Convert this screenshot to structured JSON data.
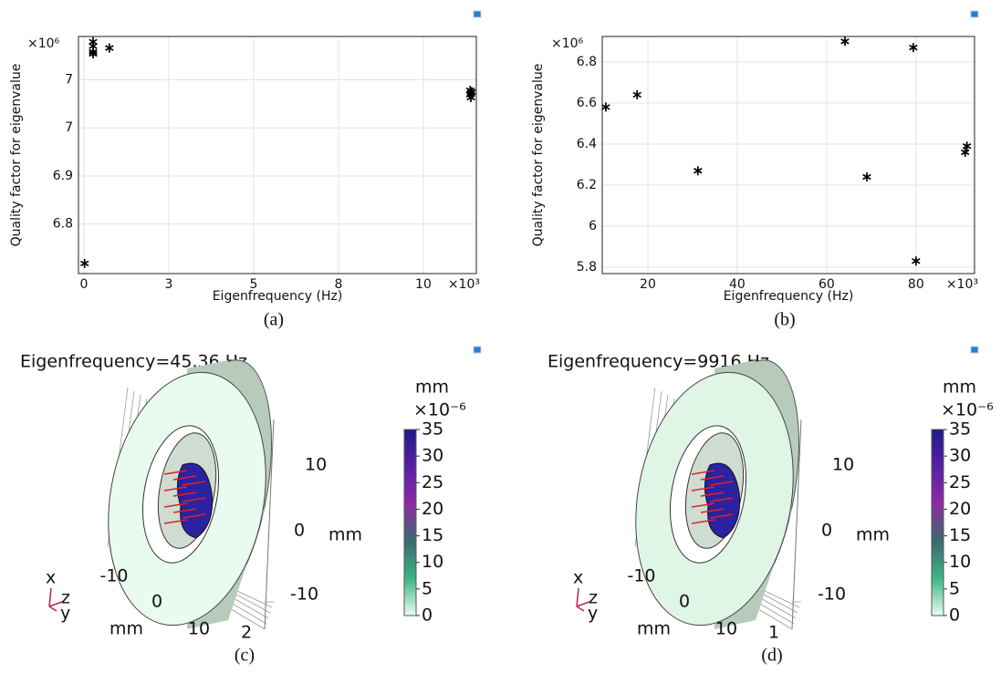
{
  "chart_data": [
    {
      "type": "scatter",
      "caption": "(a)",
      "xlabel": "Eigenfrequency (Hz)",
      "ylabel": "Quality factor for eigenvalue",
      "x_scale_label": "×10³",
      "y_scale_label": "×10⁶",
      "color": "#000000",
      "grid": true,
      "xlim": [
        -0.16,
        11.56
      ],
      "xticks": [
        0,
        {
          "value": 2.5,
          "label": "3"
        },
        5,
        {
          "value": 7.5,
          "label": "8"
        },
        10
      ],
      "ylim": [
        6.697,
        7.19
      ],
      "yticks": [
        6.8,
        6.9,
        7,
        {
          "value": 7.1,
          "label": "7"
        }
      ],
      "x": [
        0.02,
        0.27,
        0.27,
        0.27,
        0.27,
        0.75,
        11.38,
        11.4,
        11.38,
        11.4,
        11.42
      ],
      "values": [
        6.718,
        7.179,
        7.17,
        7.158,
        7.154,
        7.166,
        7.078,
        7.072,
        7.069,
        7.063,
        7.075
      ]
    },
    {
      "type": "scatter",
      "caption": "(b)",
      "xlabel": "Eigenfrequency (Hz)",
      "ylabel": "Quality factor for eigenvalue",
      "x_scale_label": "×10³",
      "y_scale_label": "×10⁶",
      "color": "#000000",
      "grid": true,
      "xlim": [
        9.8,
        93.1
      ],
      "xticks": [
        20,
        40,
        60,
        80
      ],
      "ylim": [
        5.769,
        6.924
      ],
      "yticks": [
        5.8,
        6,
        6.2,
        6.4,
        6.6,
        6.8
      ],
      "x": [
        10.6,
        17.6,
        31.2,
        64.1,
        69,
        79.4,
        80,
        91,
        91.4
      ],
      "values": [
        6.58,
        6.64,
        6.27,
        6.9,
        6.24,
        6.87,
        5.83,
        6.36,
        6.39
      ]
    },
    {
      "type": "surface",
      "caption": "(c)",
      "title": "Eigenfrequency=45.36 Hz",
      "colorbar_unit": "mm",
      "colorbar_scale": "×10⁻⁶",
      "colorbar_lim": [
        0,
        35
      ],
      "colorbar_ticks": [
        0,
        5,
        10,
        15,
        20,
        25,
        30,
        35
      ],
      "colormap": [
        "#eafcf0",
        "#3cb585",
        "#3b6b6e",
        "#8d2ba3",
        "#5a1fa6",
        "#1c1a8a"
      ],
      "vertical_ticks": [
        10,
        0,
        -10
      ],
      "horizontal_ticks": [
        -10,
        0,
        10
      ],
      "depth_ticks": [
        2
      ],
      "axis_unit": "mm",
      "triad": [
        "x",
        "z",
        "y"
      ]
    },
    {
      "type": "surface",
      "caption": "(d)",
      "title": "Eigenfrequency=9916 Hz",
      "colorbar_unit": "mm",
      "colorbar_scale": "×10⁻⁶",
      "colorbar_lim": [
        0,
        35
      ],
      "colorbar_ticks": [
        0,
        5,
        10,
        15,
        20,
        25,
        30,
        35
      ],
      "colormap": [
        "#eafcf0",
        "#3cb585",
        "#3b6b6e",
        "#8d2ba3",
        "#5a1fa6",
        "#1c1a8a"
      ],
      "vertical_ticks": [
        10,
        0,
        -10
      ],
      "horizontal_ticks": [
        -10,
        0,
        10
      ],
      "depth_ticks": [
        1
      ],
      "axis_unit": "mm",
      "triad": [
        "x",
        "z",
        "y"
      ]
    }
  ]
}
